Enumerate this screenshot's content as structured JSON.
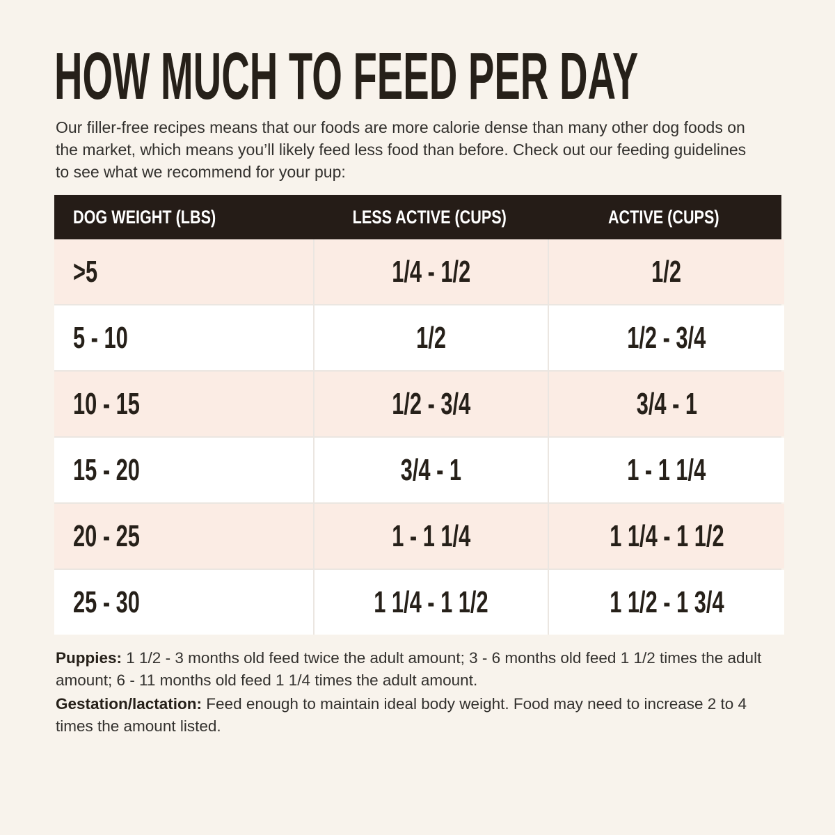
{
  "page": {
    "title": "HOW MUCH TO FEED PER DAY",
    "intro": "Our filler-free recipes means that our foods are more calorie dense than many other dog foods on the market, which means you’ll likely feed less food than before. Check out our feeding guidelines to see what we recommend for your pup:"
  },
  "colors": {
    "background": "#f8f3ec",
    "header_bg": "#251c17",
    "header_text": "#ffffff",
    "row_pink": "#fbece4",
    "row_white": "#ffffff",
    "divider": "#ebe6e1",
    "text": "#262019"
  },
  "table": {
    "columns": [
      "DOG WEIGHT (LBS)",
      "LESS ACTIVE (CUPS)",
      "ACTIVE (CUPS)"
    ],
    "rows": [
      [
        ">5",
        "1/4 - 1/2",
        "1/2"
      ],
      [
        "5 - 10",
        "1/2",
        "1/2 - 3/4"
      ],
      [
        "10 - 15",
        "1/2 - 3/4",
        "3/4 - 1"
      ],
      [
        "15 - 20",
        "3/4 - 1",
        "1 - 1 1/4"
      ],
      [
        "20 - 25",
        "1 - 1 1/4",
        "1 1/4 - 1 1/2"
      ],
      [
        "25 - 30",
        "1 1/4 - 1 1/2",
        "1 1/2 - 1 3/4"
      ]
    ]
  },
  "notes": [
    {
      "label": "Puppies:",
      "text": "1 1/2 - 3 months old feed twice the adult amount; 3 - 6 months old feed 1 1/2 times the adult amount; 6 - 11 months old feed 1 1/4 times the adult amount."
    },
    {
      "label": "Gestation/lactation:",
      "text": "Feed enough to maintain ideal body weight. Food may need to increase 2 to 4 times the amount listed."
    }
  ]
}
